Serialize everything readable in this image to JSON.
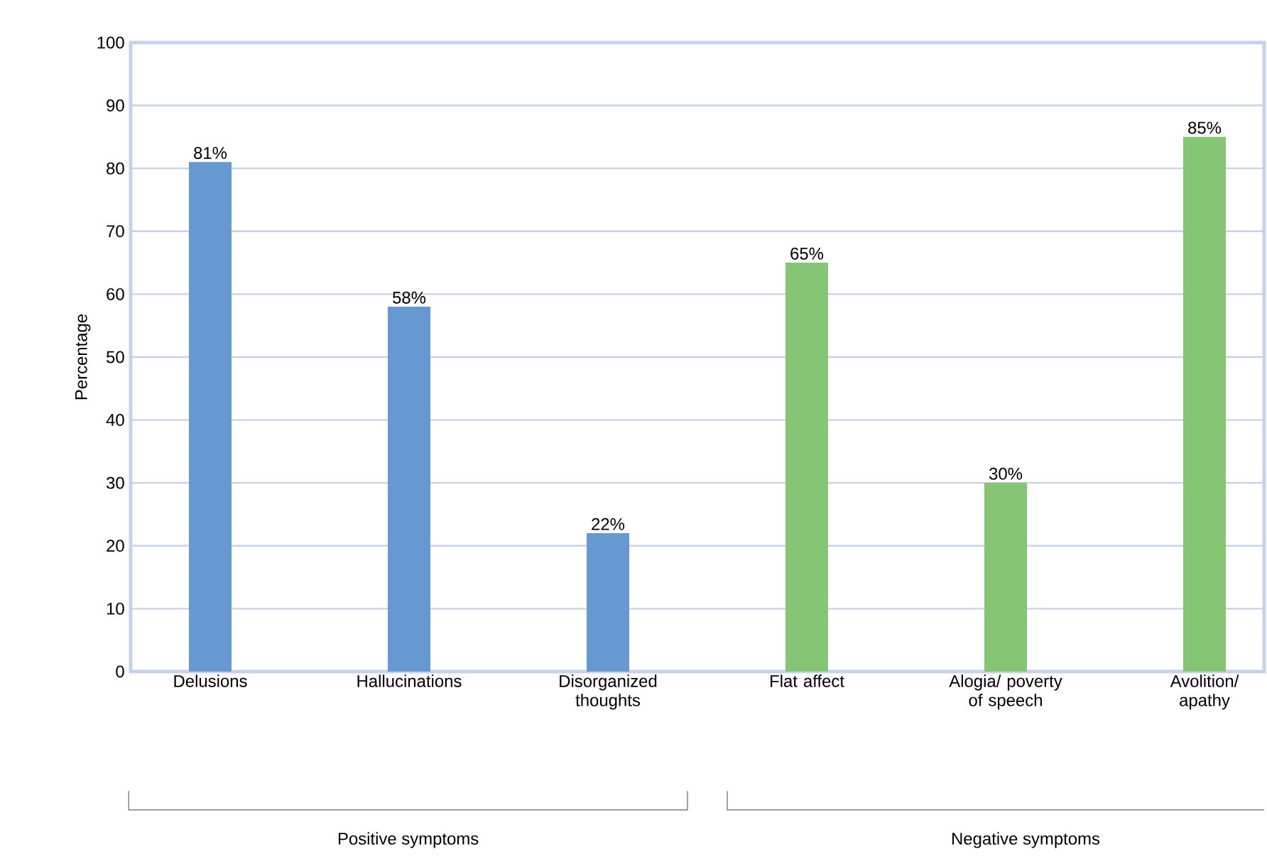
{
  "chart_data": {
    "type": "bar",
    "ylabel": "Percentage",
    "categories": [
      "Delusions",
      "Hallucinations",
      "Disorganized thoughts",
      "Flat affect",
      "Alogia/ poverty of speech",
      "Avolition/ apathy"
    ],
    "values": [
      81,
      58,
      22,
      65,
      30,
      85
    ],
    "colors": [
      "#6699d1",
      "#6699d1",
      "#6699d1",
      "#85c674",
      "#85c674",
      "#85c674"
    ],
    "value_labels": [
      "81%",
      "58%",
      "22%",
      "65%",
      "30%",
      "85%"
    ],
    "ylim": [
      0,
      100
    ],
    "yticks": [
      0,
      10,
      20,
      30,
      40,
      50,
      60,
      70,
      80,
      90,
      100
    ],
    "grid": "y",
    "annotations": [
      "Positive symptoms",
      "Negative symptoms"
    ]
  }
}
